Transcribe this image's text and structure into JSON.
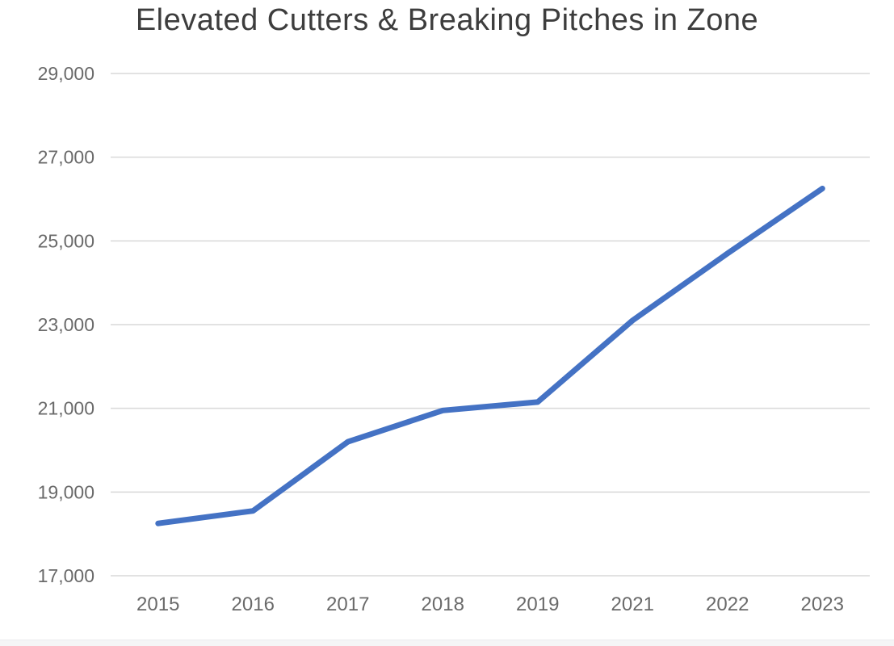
{
  "page": {
    "background_color": "#ffffff",
    "bottom_band_color": "#f5f5f6"
  },
  "chart_data": {
    "type": "line",
    "title": "Elevated Cutters & Breaking Pitches in Zone",
    "categories": [
      "2015",
      "2016",
      "2017",
      "2018",
      "2019",
      "2021",
      "2022",
      "2023"
    ],
    "series": [
      {
        "name": "Elevated Cutters & Breaking Pitches in Zone",
        "values": [
          18250,
          18550,
          20200,
          20950,
          21150,
          23100,
          24700,
          26250
        ]
      }
    ],
    "xlabel": "",
    "ylabel": "",
    "ylim": [
      17000,
      29000
    ],
    "y_tick_interval": 2000,
    "y_ticks": [
      17000,
      19000,
      21000,
      23000,
      25000,
      27000,
      29000
    ],
    "y_tick_labels": [
      "17,000",
      "19,000",
      "21,000",
      "23,000",
      "25,000",
      "27,000",
      "29,000"
    ],
    "grid": "horizontal-only",
    "legend": "none",
    "markers": "none",
    "colors": {
      "line": "#4472c4",
      "gridline": "#d9d9d9",
      "tick_label": "#6a6a6a",
      "title": "#3d3d3d"
    }
  }
}
